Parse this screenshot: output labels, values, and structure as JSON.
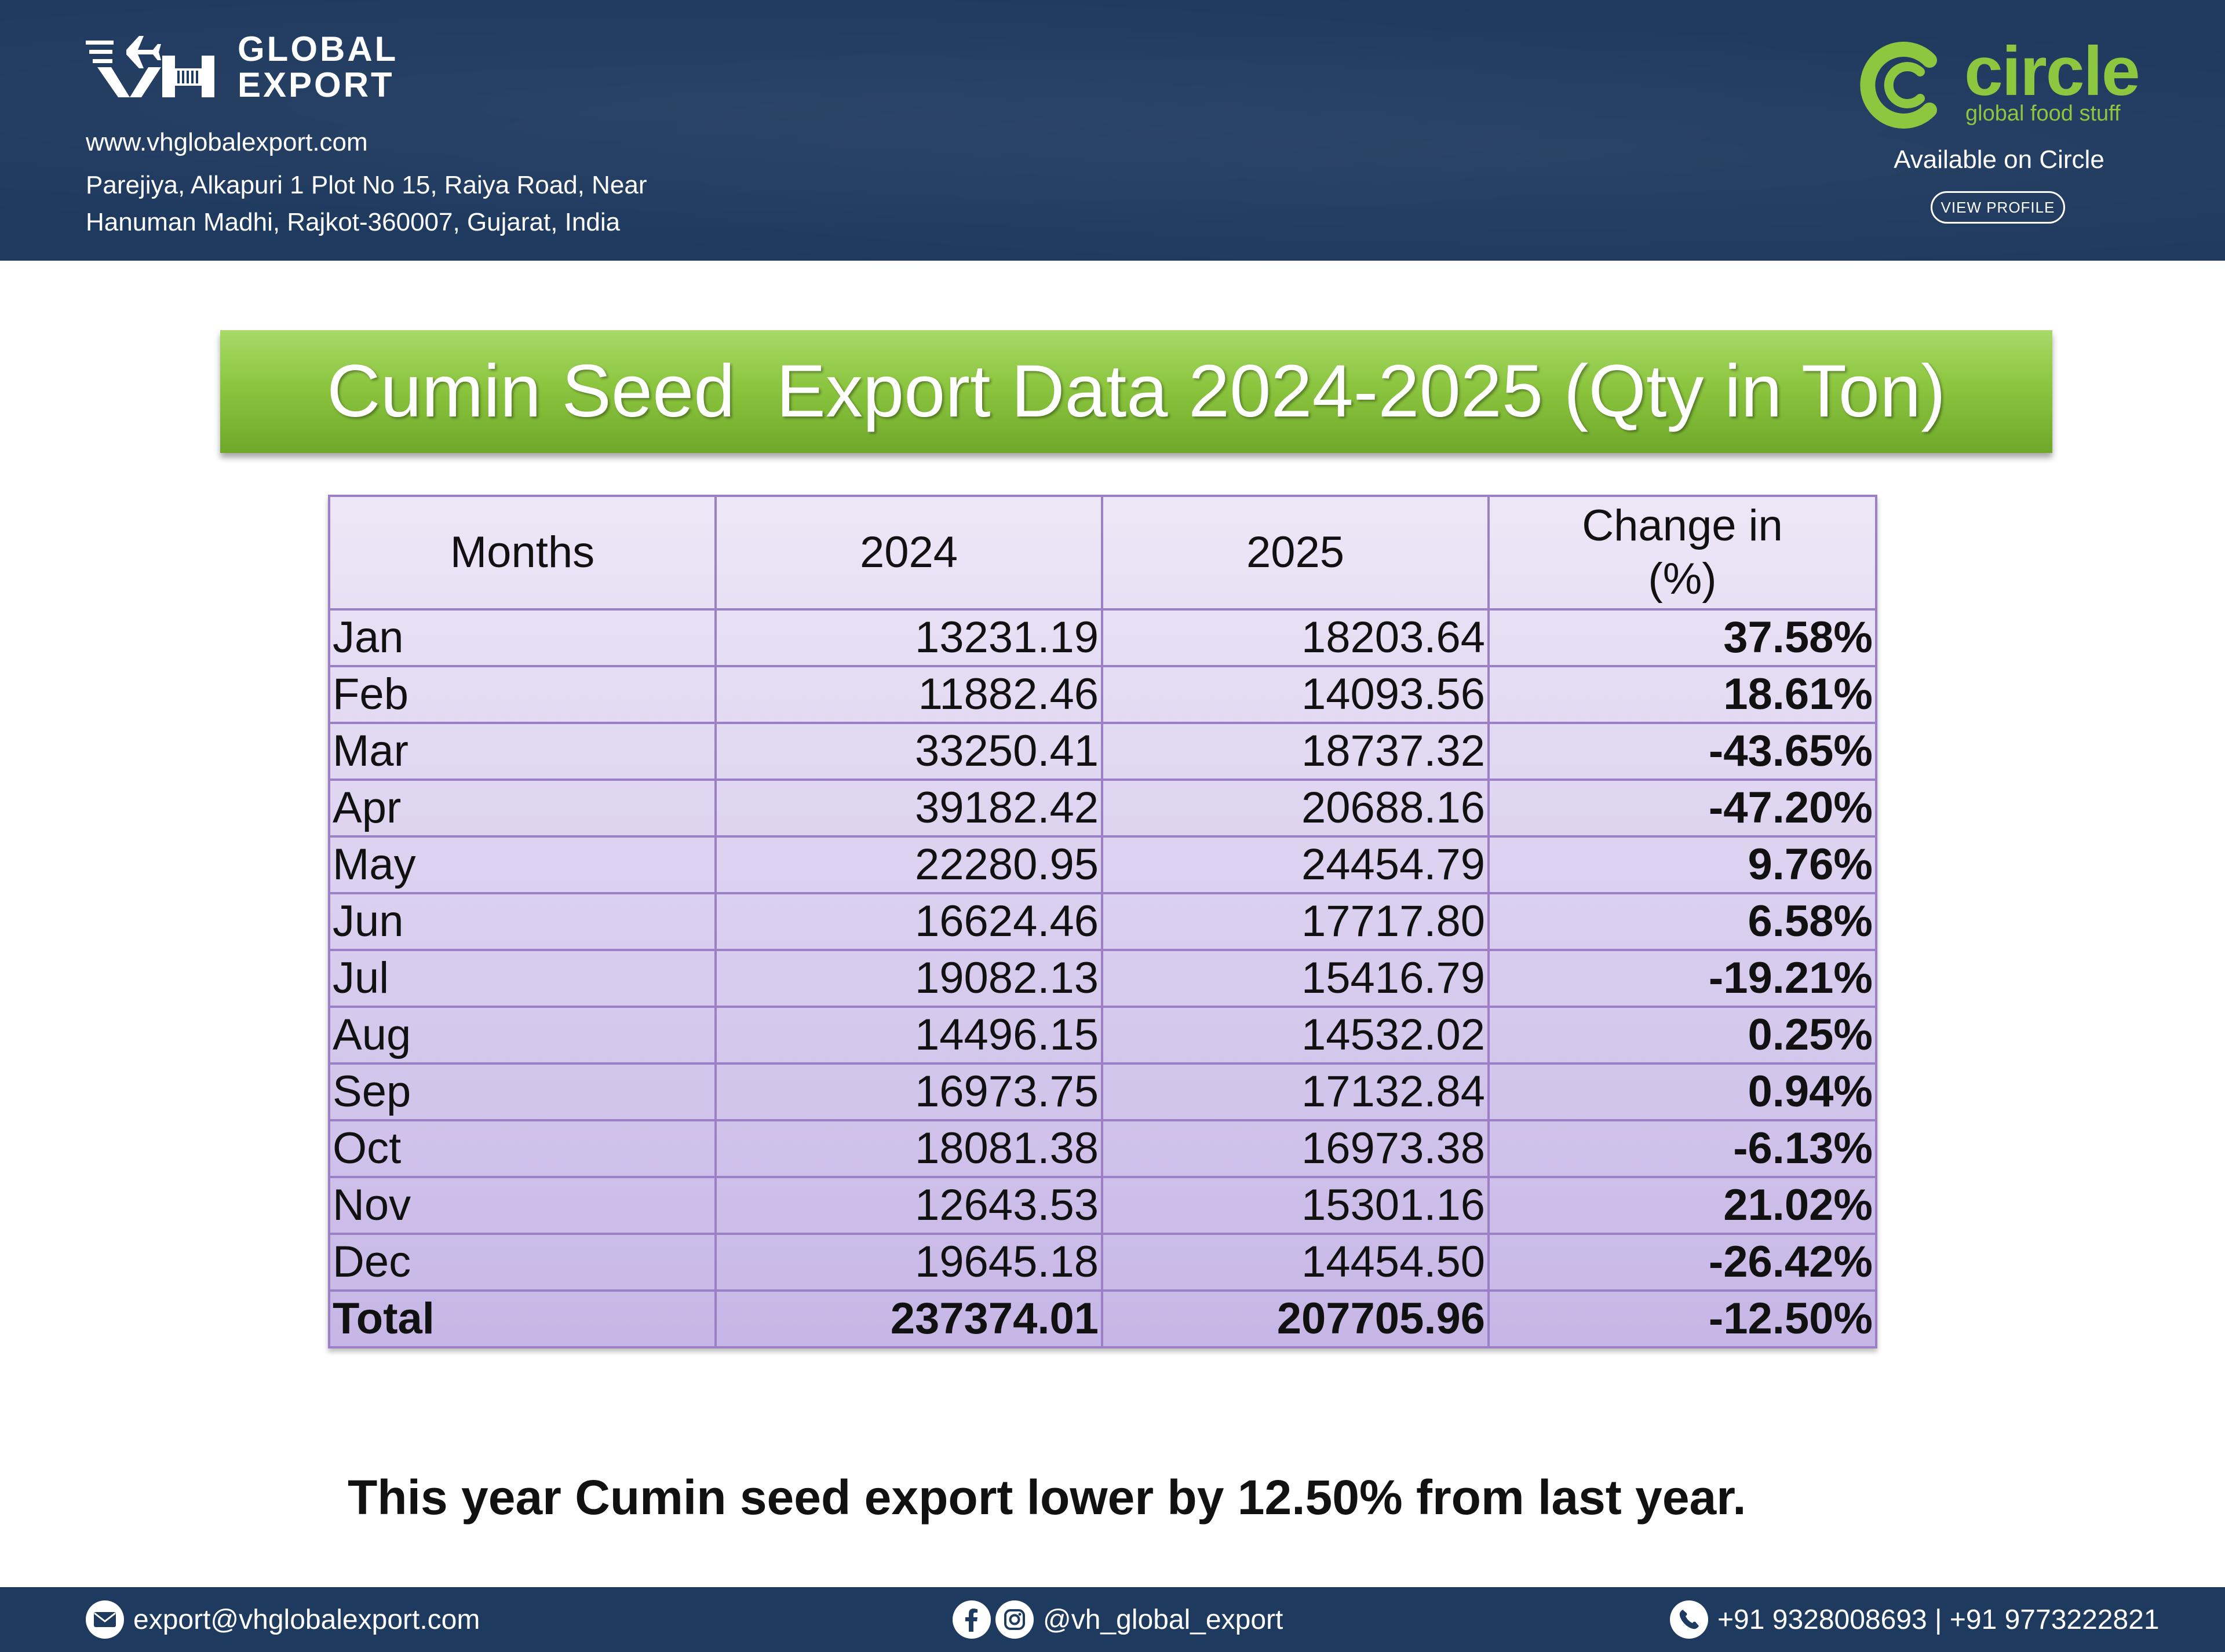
{
  "header": {
    "logo_text_line1": "GLOBAL",
    "logo_text_line2": "EXPORT",
    "logo_mark": "VH",
    "website": "www.vhglobalexport.com",
    "address_line1": "Parejiya, Alkapuri 1 Plot No 15, Raiya Road, Near",
    "address_line2": "Hanuman Madhi, Rajkot-360007, Gujarat, India",
    "circle_brand": "circle",
    "circle_tagline": "global food stuff",
    "available_text": "Available on Circle",
    "view_profile_label": "VIEW PROFILE"
  },
  "title": "Cumin Seed  Export Data 2024-2025 (Qty in Ton)",
  "table": {
    "headers": [
      "Months",
      "2024",
      "2025",
      "Change in",
      "(%)"
    ],
    "rows": [
      {
        "month": "Jan",
        "y2024": "13231.19",
        "y2025": "18203.64",
        "change": "37.58%"
      },
      {
        "month": "Feb",
        "y2024": "11882.46",
        "y2025": "14093.56",
        "change": "18.61%"
      },
      {
        "month": "Mar",
        "y2024": "33250.41",
        "y2025": "18737.32",
        "change": "-43.65%"
      },
      {
        "month": "Apr",
        "y2024": "39182.42",
        "y2025": "20688.16",
        "change": "-47.20%"
      },
      {
        "month": "May",
        "y2024": "22280.95",
        "y2025": "24454.79",
        "change": "9.76%"
      },
      {
        "month": "Jun",
        "y2024": "16624.46",
        "y2025": "17717.80",
        "change": "6.58%"
      },
      {
        "month": "Jul",
        "y2024": "19082.13",
        "y2025": "15416.79",
        "change": "-19.21%"
      },
      {
        "month": "Aug",
        "y2024": "14496.15",
        "y2025": "14532.02",
        "change": "0.25%"
      },
      {
        "month": "Sep",
        "y2024": "16973.75",
        "y2025": "17132.84",
        "change": "0.94%"
      },
      {
        "month": "Oct",
        "y2024": "18081.38",
        "y2025": "16973.38",
        "change": "-6.13%"
      },
      {
        "month": "Nov",
        "y2024": "12643.53",
        "y2025": "15301.16",
        "change": "21.02%"
      },
      {
        "month": "Dec",
        "y2024": "19645.18",
        "y2025": "14454.50",
        "change": "-26.42%"
      }
    ],
    "total": {
      "month": "Total",
      "y2024": "237374.01",
      "y2025": "207705.96",
      "change": "-12.50%"
    }
  },
  "note": "This year Cumin seed export lower by 12.50% from last year.",
  "footer": {
    "email": "export@vhglobalexport.com",
    "social": "@vh_global_export",
    "phones": "+91 9328008693 | +91 9773222821",
    "icons": [
      "email-icon",
      "facebook-icon",
      "instagram-icon",
      "phone-icon"
    ]
  },
  "colors": {
    "header_bg": "#1f3a5f",
    "banner_green": "#8cc63f",
    "table_border": "#9b80c6",
    "table_fill_top": "#ede7f7",
    "table_fill_bottom": "#c6b6e6",
    "circle_green": "#8dc63f"
  }
}
